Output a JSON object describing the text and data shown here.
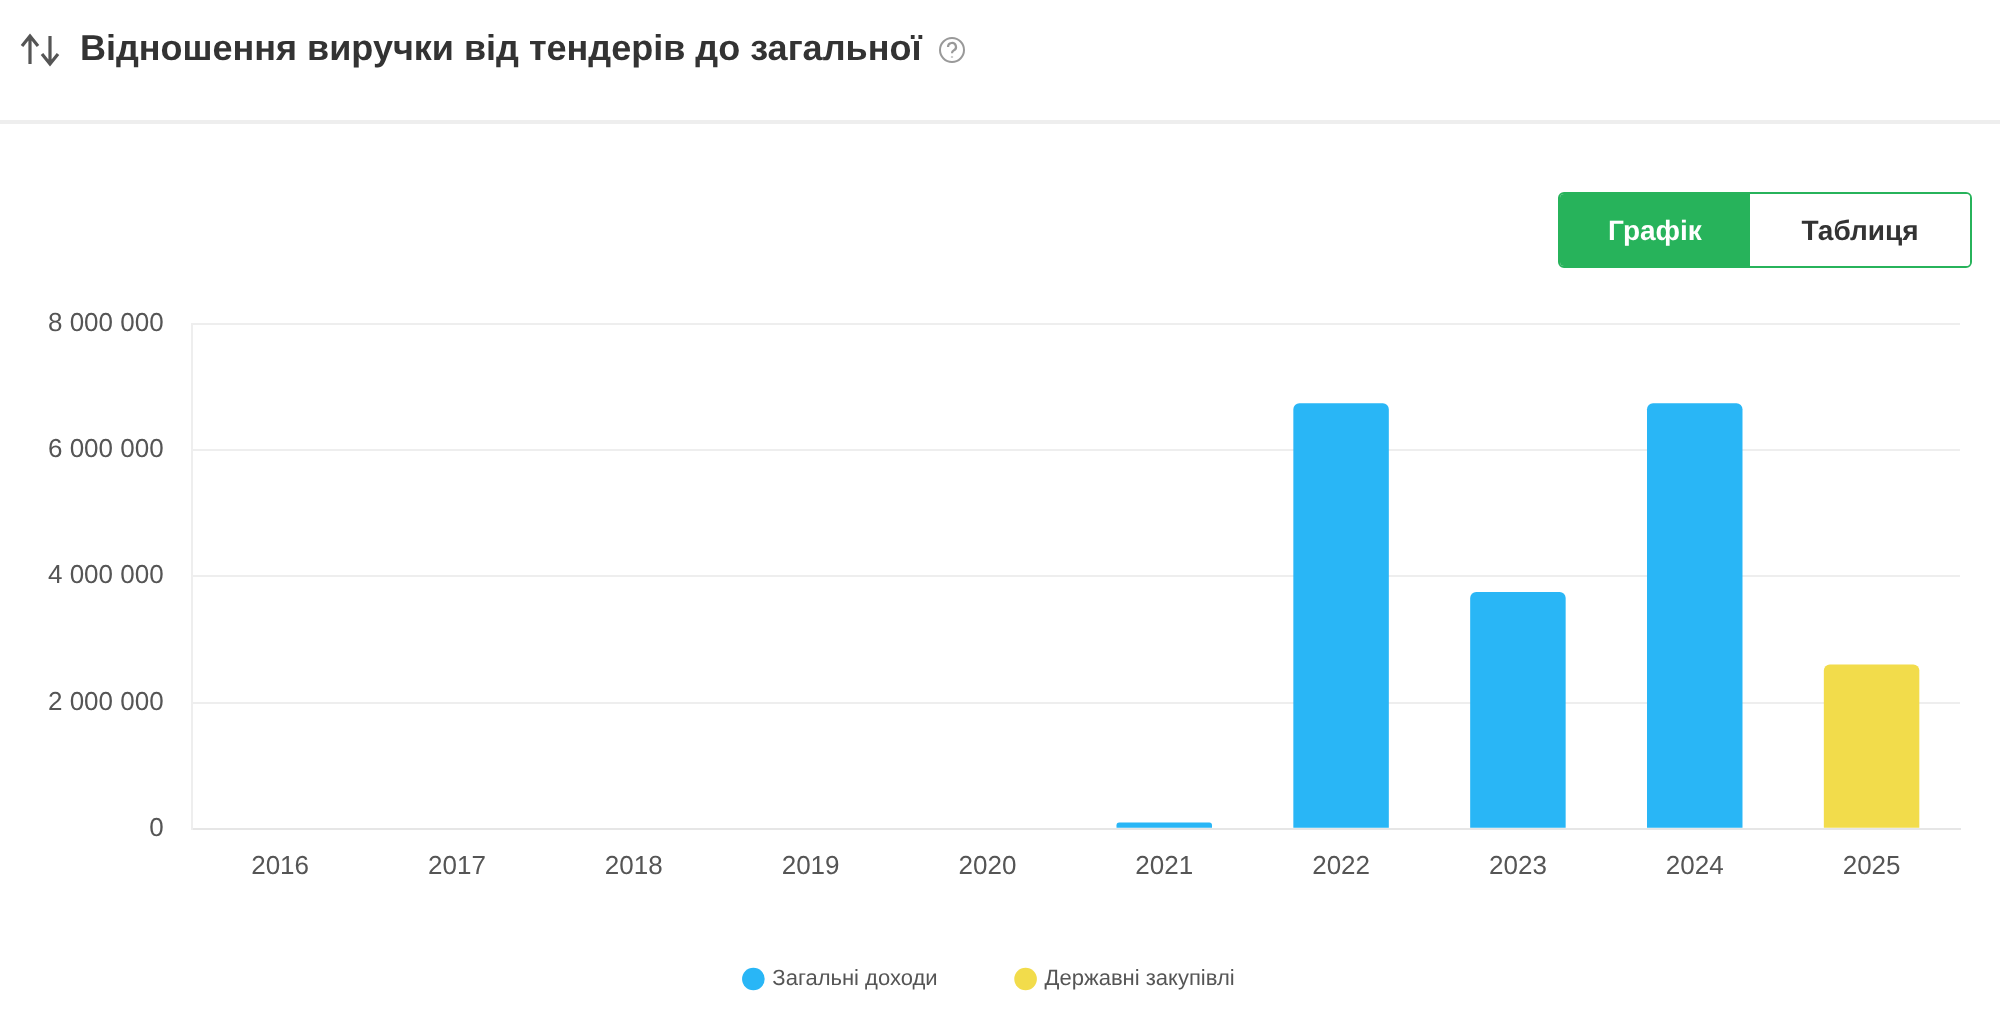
{
  "chart_data": {
    "type": "bar",
    "title": "Відношення виручки від тендерів до загальної",
    "annotations": [
      "Графік",
      "Таблиця"
    ],
    "categories": [
      "2016",
      "2017",
      "2018",
      "2019",
      "2020",
      "2021",
      "2022",
      "2023",
      "2024",
      "2025"
    ],
    "series": [
      {
        "name": "Загальні доходи",
        "color": "#29b6f6",
        "values": [
          null,
          null,
          null,
          null,
          null,
          100000,
          6740000,
          3750000,
          6740000,
          null
        ]
      },
      {
        "name": "Державні закупівлі",
        "color": "#f2dc4b",
        "values": [
          null,
          null,
          null,
          null,
          null,
          null,
          null,
          null,
          null,
          2600000
        ]
      }
    ],
    "ylim": [
      0,
      8000000
    ],
    "yticks": [
      {
        "value": 0,
        "label": "0"
      },
      {
        "value": 2000000,
        "label": "2 000 000"
      },
      {
        "value": 4000000,
        "label": "4 000 000"
      },
      {
        "value": 6000000,
        "label": "6 000 000"
      },
      {
        "value": 8000000,
        "label": "8 000 000"
      }
    ],
    "grid": "y",
    "legend": "bottom"
  }
}
